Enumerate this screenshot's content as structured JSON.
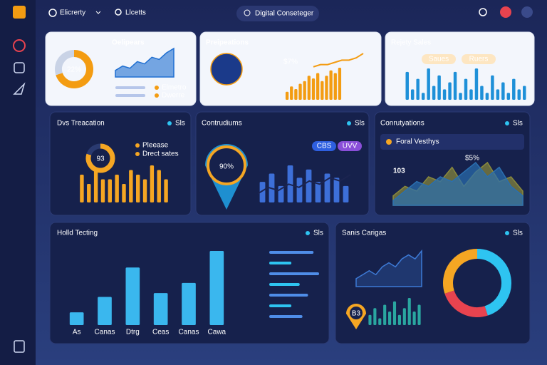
{
  "topbar": {
    "brand": "Elicrerty",
    "tab": "Llcetts",
    "search": "Digital Conseteger"
  },
  "cards": [
    {
      "title": "Oelipears",
      "center": "22%",
      "donut": {
        "values": [
          70,
          30
        ],
        "colors": [
          "#f39c12",
          "#c9d3e6"
        ]
      },
      "line": {
        "values": [
          3,
          5,
          4,
          7,
          6,
          9,
          8,
          11,
          13
        ],
        "color": "#1f6fd1"
      },
      "legend": [
        "Elmetro",
        "Dwerre"
      ]
    },
    {
      "title": "Preipeations",
      "center": "$7%",
      "bars": {
        "values": [
          3,
          5,
          4,
          6,
          7,
          9,
          8,
          10,
          7,
          9,
          11,
          10,
          12
        ],
        "color": "#f39c12"
      },
      "line": {
        "values": [
          2,
          3,
          3,
          4,
          5,
          5,
          6,
          8
        ],
        "color": "#f39c12"
      }
    },
    {
      "title": "Rejety Sales",
      "chips": [
        "Saues",
        "Ruers"
      ],
      "bars": {
        "values": [
          8,
          3,
          6,
          2,
          9,
          4,
          7,
          3,
          5,
          8,
          2,
          6,
          3,
          9,
          4,
          2,
          7,
          3,
          5,
          2,
          6,
          3,
          4
        ],
        "color": "#1e90d8"
      }
    },
    {
      "title": "Dvs Treacation",
      "status": "Sls",
      "center": "93",
      "donut": {
        "values": [
          80,
          20
        ],
        "colors": [
          "#f5a623",
          "#2a3a70"
        ]
      },
      "legend": [
        "Pleease",
        "Drect sates"
      ],
      "bars": {
        "values": [
          6,
          4,
          7,
          5,
          5,
          6,
          4,
          7,
          6,
          5,
          8,
          7,
          5
        ],
        "color": "#f5a623"
      }
    },
    {
      "title": "Contrudiums",
      "status": "Sls",
      "center": "90%",
      "chips": [
        "CBS",
        "UVV"
      ],
      "bars": {
        "values": [
          5,
          7,
          4,
          9,
          6,
          8,
          5,
          7,
          6,
          4
        ],
        "color": "#3d6fd8"
      },
      "line": {
        "values": [
          3,
          5,
          4,
          6,
          5,
          7,
          6,
          8,
          7,
          9
        ],
        "color": "#1b2450"
      }
    },
    {
      "title": "Conrutyations",
      "status": "Sls",
      "dropdown": "Foral Vesthys",
      "big": "103",
      "note": "$5%",
      "areas": [
        {
          "values": [
            2,
            4,
            3,
            6,
            5,
            8,
            4,
            7,
            9,
            5,
            6,
            3
          ],
          "color": "#8a8a3c"
        },
        {
          "values": [
            1,
            3,
            5,
            4,
            6,
            5,
            7,
            9,
            6,
            8,
            4,
            2
          ],
          "color": "#2a6fb0"
        }
      ]
    },
    {
      "title": "Holld Tecting",
      "status": "Sls",
      "categories": [
        "As",
        "Canas",
        "Dtrg",
        "Ceas",
        "Canas",
        "Cawa"
      ],
      "bars": {
        "values": [
          10,
          22,
          45,
          25,
          33,
          58
        ],
        "color": "#3ab7ee"
      },
      "hbars": {
        "values": [
          80,
          40,
          90,
          55,
          70,
          40,
          60
        ],
        "color": "#4f8de8"
      }
    },
    {
      "title": "Sanis Carigas",
      "status": "Sls",
      "pin": "B3",
      "line": {
        "values": [
          2,
          3,
          4,
          3,
          5,
          6,
          5,
          7,
          8,
          7,
          9
        ],
        "color": "#3d7ad6"
      },
      "bars": {
        "values": [
          3,
          5,
          2,
          6,
          4,
          7,
          3,
          5,
          8,
          4,
          6
        ],
        "color": "#2aa6a0"
      },
      "donut": {
        "values": [
          45,
          25,
          30
        ],
        "colors": [
          "#2ec4f1",
          "#e8434f",
          "#f5a623"
        ]
      }
    }
  ]
}
